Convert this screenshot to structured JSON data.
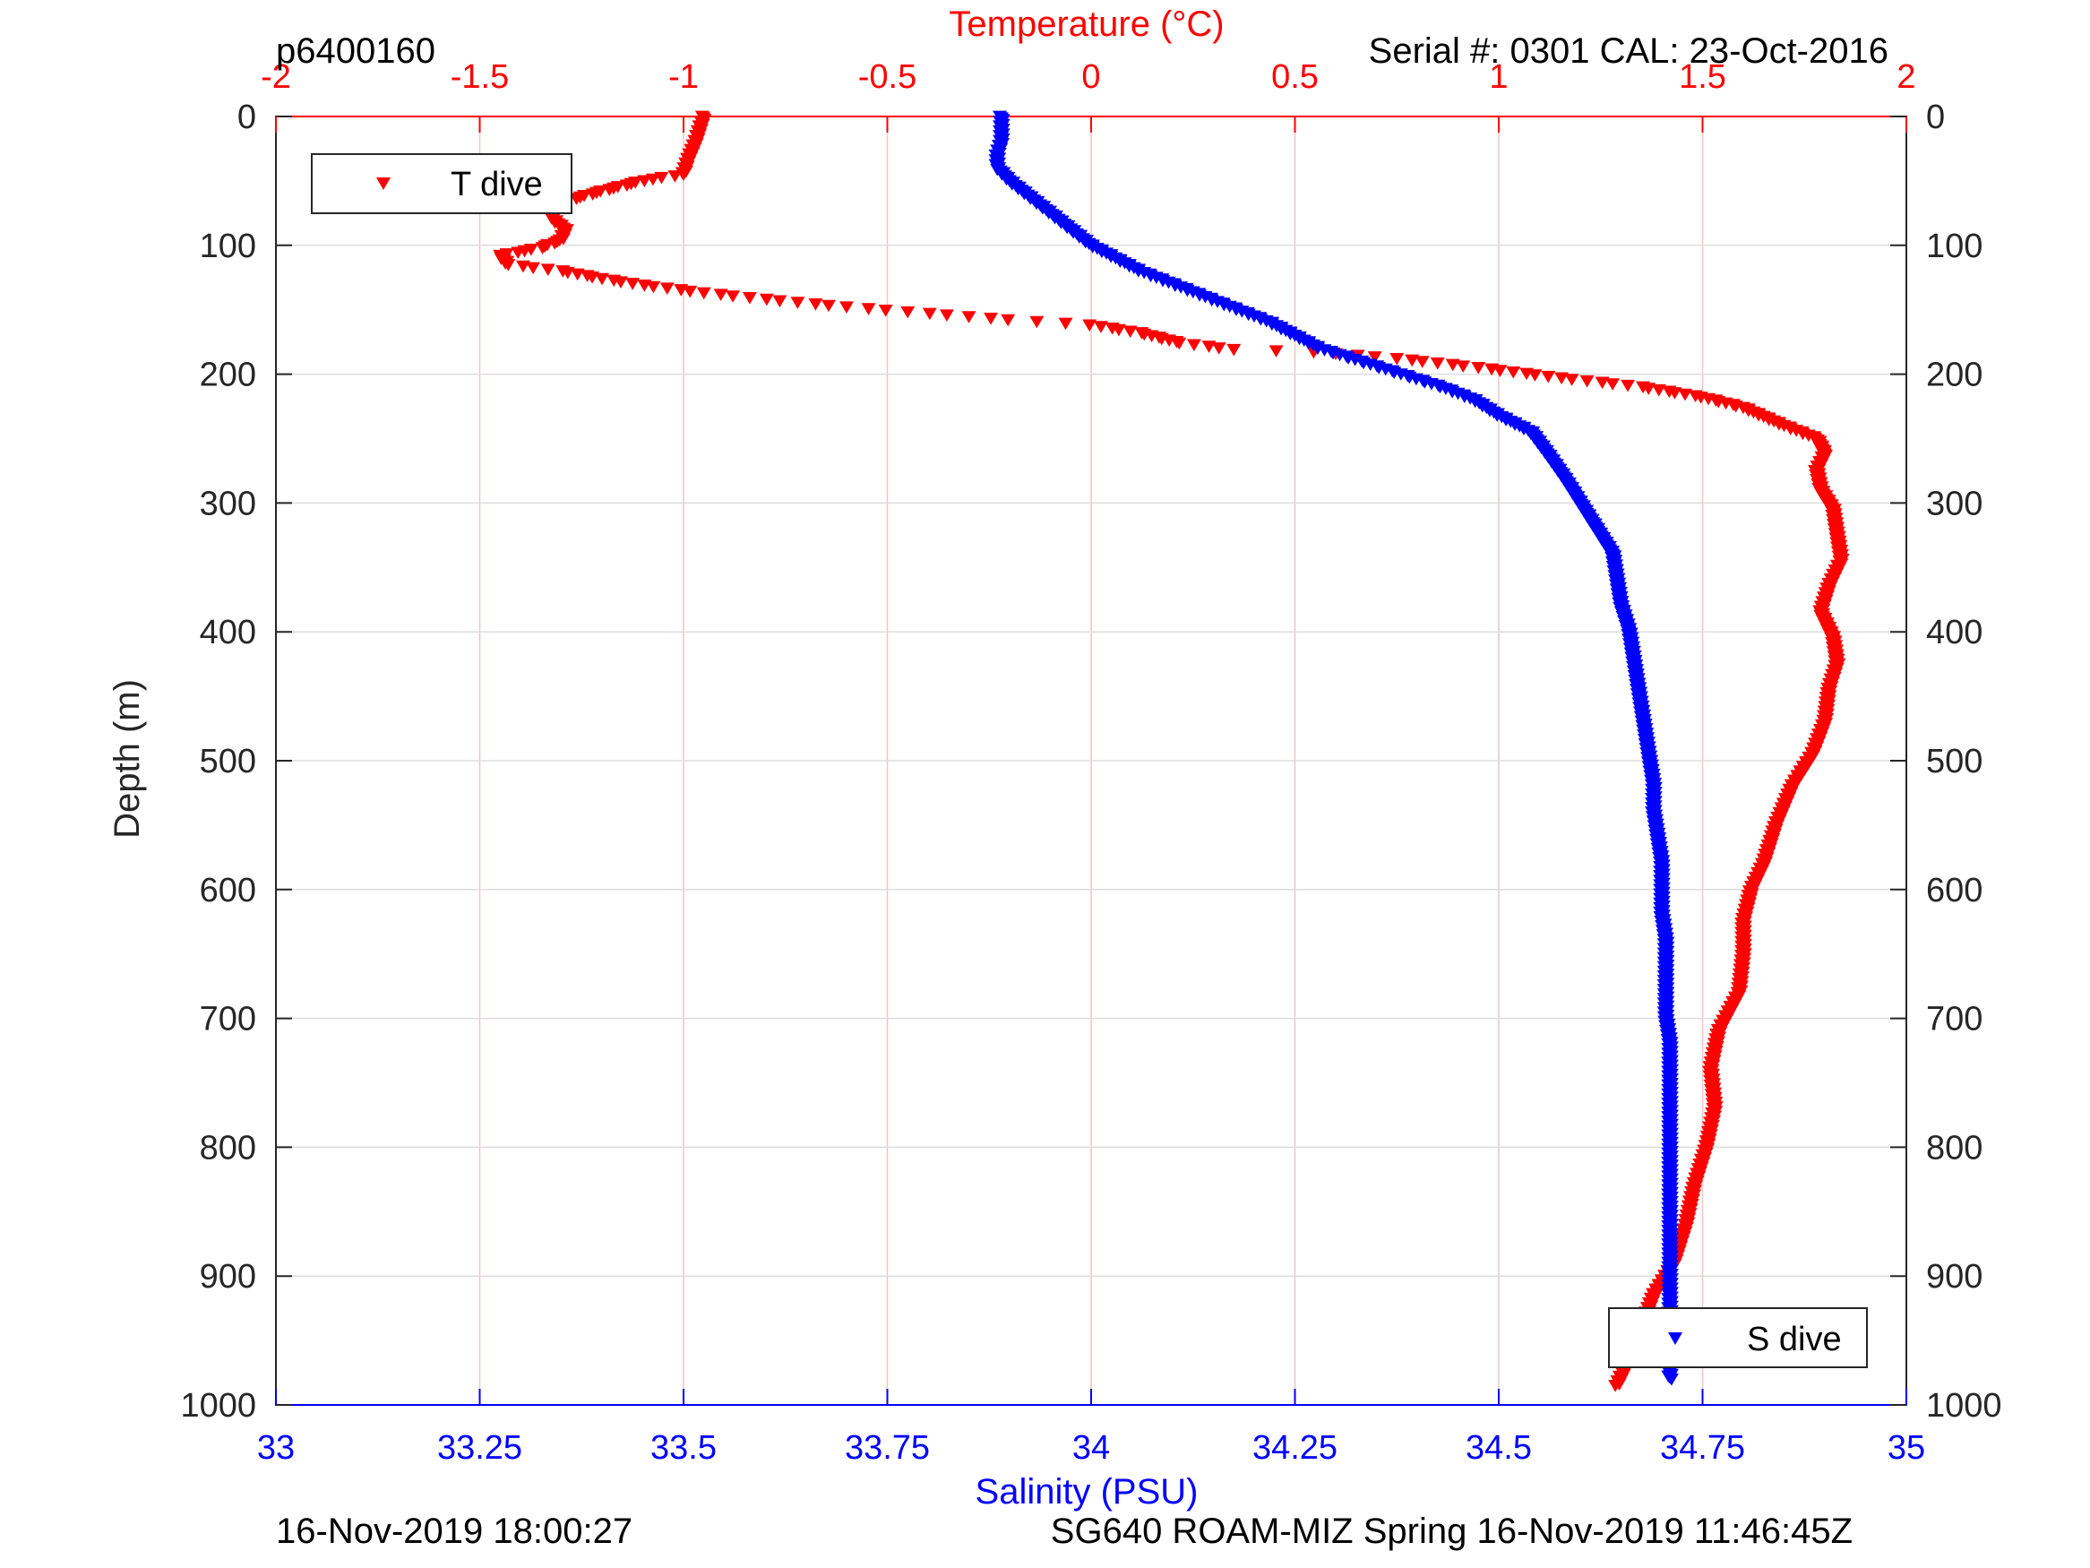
{
  "header": {
    "profile_id": "p6400160",
    "serial_cal": "Serial #: 0301  CAL: 23-Oct-2016"
  },
  "footer": {
    "left": "16-Nov-2019 18:00:27",
    "right": "SG640 ROAM-MIZ Spring 16-Nov-2019 11:46:45Z"
  },
  "colors": {
    "temperature": "#ff0000",
    "salinity": "#0000ff",
    "axis": "#262626",
    "grid_temperature": "#f2c4c4",
    "grid_depth": "#dddddd"
  },
  "chart_data": {
    "type": "scatter",
    "y_axis": {
      "label": "Depth (m)",
      "range": [
        0,
        1000
      ],
      "reversed": true,
      "ticks": [
        "0",
        "100",
        "200",
        "300",
        "400",
        "500",
        "600",
        "700",
        "800",
        "900",
        "1000"
      ],
      "tick_values": [
        0,
        100,
        200,
        300,
        400,
        500,
        600,
        700,
        800,
        900,
        1000
      ]
    },
    "x_top": {
      "label": "Temperature (°C)",
      "range": [
        -2,
        2
      ],
      "ticks": [
        "-2",
        "-1.5",
        "-1",
        "-0.5",
        "0",
        "0.5",
        "1",
        "1.5",
        "2"
      ],
      "tick_values": [
        -2,
        -1.5,
        -1,
        -0.5,
        0,
        0.5,
        1,
        1.5,
        2
      ]
    },
    "x_bottom": {
      "label": "Salinity (PSU)",
      "range": [
        33,
        35
      ],
      "ticks": [
        "33",
        "33.25",
        "33.5",
        "33.75",
        "34",
        "34.25",
        "34.5",
        "34.75",
        "35"
      ],
      "tick_values": [
        33,
        33.25,
        33.5,
        33.75,
        34,
        34.25,
        34.5,
        34.75,
        35
      ]
    },
    "grid": {
      "vertical_temperature": true,
      "horizontal_depth": true
    },
    "series": [
      {
        "name": "T dive",
        "axis": "top",
        "marker": "triangle-down",
        "color": "#ff0000",
        "legend_position": "top-left",
        "points": [
          [
            -0.95,
            0
          ],
          [
            -0.96,
            10
          ],
          [
            -0.97,
            20
          ],
          [
            -0.99,
            35
          ],
          [
            -1.0,
            45
          ],
          [
            -1.1,
            50
          ],
          [
            -1.2,
            58
          ],
          [
            -1.28,
            65
          ],
          [
            -1.32,
            72
          ],
          [
            -1.32,
            80
          ],
          [
            -1.29,
            88
          ],
          [
            -1.3,
            96
          ],
          [
            -1.35,
            102
          ],
          [
            -1.45,
            108
          ],
          [
            -1.43,
            115
          ],
          [
            -1.3,
            120
          ],
          [
            -1.2,
            126
          ],
          [
            -1.1,
            131
          ],
          [
            -0.95,
            137
          ],
          [
            -0.8,
            142
          ],
          [
            -0.6,
            148
          ],
          [
            -0.4,
            153
          ],
          [
            -0.2,
            158
          ],
          [
            0.0,
            162
          ],
          [
            0.12,
            168
          ],
          [
            0.22,
            176
          ],
          [
            0.35,
            181
          ],
          [
            0.55,
            183
          ],
          [
            0.75,
            188
          ],
          [
            0.95,
            195
          ],
          [
            1.15,
            203
          ],
          [
            1.35,
            210
          ],
          [
            1.5,
            218
          ],
          [
            1.6,
            226
          ],
          [
            1.65,
            233
          ],
          [
            1.7,
            240
          ],
          [
            1.78,
            250
          ],
          [
            1.8,
            262
          ],
          [
            1.78,
            275
          ],
          [
            1.79,
            290
          ],
          [
            1.82,
            305
          ],
          [
            1.83,
            325
          ],
          [
            1.84,
            345
          ],
          [
            1.81,
            365
          ],
          [
            1.79,
            385
          ],
          [
            1.82,
            405
          ],
          [
            1.83,
            425
          ],
          [
            1.81,
            445
          ],
          [
            1.8,
            470
          ],
          [
            1.77,
            495
          ],
          [
            1.72,
            520
          ],
          [
            1.68,
            550
          ],
          [
            1.65,
            580
          ],
          [
            1.62,
            600
          ],
          [
            1.6,
            625
          ],
          [
            1.6,
            650
          ],
          [
            1.59,
            680
          ],
          [
            1.54,
            710
          ],
          [
            1.52,
            740
          ],
          [
            1.53,
            770
          ],
          [
            1.51,
            800
          ],
          [
            1.48,
            830
          ],
          [
            1.46,
            860
          ],
          [
            1.43,
            890
          ],
          [
            1.38,
            915
          ],
          [
            1.35,
            940
          ],
          [
            1.32,
            965
          ],
          [
            1.29,
            985
          ]
        ]
      },
      {
        "name": "S dive",
        "axis": "bottom",
        "marker": "triangle-down",
        "color": "#0000ff",
        "legend_position": "bottom-right",
        "points": [
          [
            33.89,
            0
          ],
          [
            33.89,
            10
          ],
          [
            33.89,
            20
          ],
          [
            33.885,
            30
          ],
          [
            33.885,
            40
          ],
          [
            33.9,
            50
          ],
          [
            33.92,
            60
          ],
          [
            33.94,
            70
          ],
          [
            33.96,
            80
          ],
          [
            33.98,
            90
          ],
          [
            34.0,
            100
          ],
          [
            34.03,
            110
          ],
          [
            34.06,
            120
          ],
          [
            34.1,
            130
          ],
          [
            34.14,
            140
          ],
          [
            34.18,
            150
          ],
          [
            34.22,
            160
          ],
          [
            34.25,
            170
          ],
          [
            34.28,
            180
          ],
          [
            34.33,
            190
          ],
          [
            34.38,
            200
          ],
          [
            34.43,
            210
          ],
          [
            34.47,
            220
          ],
          [
            34.5,
            232
          ],
          [
            34.54,
            245
          ],
          [
            34.56,
            262
          ],
          [
            34.58,
            280
          ],
          [
            34.6,
            300
          ],
          [
            34.62,
            320
          ],
          [
            34.64,
            340
          ],
          [
            34.645,
            360
          ],
          [
            34.65,
            380
          ],
          [
            34.66,
            400
          ],
          [
            34.665,
            420
          ],
          [
            34.67,
            440
          ],
          [
            34.675,
            460
          ],
          [
            34.68,
            480
          ],
          [
            34.685,
            500
          ],
          [
            34.69,
            520
          ],
          [
            34.69,
            540
          ],
          [
            34.695,
            560
          ],
          [
            34.7,
            580
          ],
          [
            34.7,
            600
          ],
          [
            34.7,
            620
          ],
          [
            34.705,
            640
          ],
          [
            34.705,
            660
          ],
          [
            34.705,
            680
          ],
          [
            34.705,
            700
          ],
          [
            34.71,
            720
          ],
          [
            34.71,
            740
          ],
          [
            34.71,
            760
          ],
          [
            34.71,
            780
          ],
          [
            34.71,
            800
          ],
          [
            34.71,
            820
          ],
          [
            34.71,
            840
          ],
          [
            34.71,
            860
          ],
          [
            34.71,
            880
          ],
          [
            34.71,
            900
          ],
          [
            34.71,
            920
          ],
          [
            34.71,
            940
          ],
          [
            34.71,
            960
          ],
          [
            34.71,
            980
          ]
        ]
      }
    ]
  }
}
